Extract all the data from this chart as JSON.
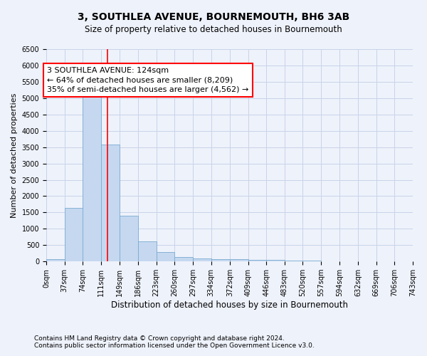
{
  "title": "3, SOUTHLEA AVENUE, BOURNEMOUTH, BH6 3AB",
  "subtitle": "Size of property relative to detached houses in Bournemouth",
  "xlabel": "Distribution of detached houses by size in Bournemouth",
  "ylabel": "Number of detached properties",
  "footnote1": "Contains HM Land Registry data © Crown copyright and database right 2024.",
  "footnote2": "Contains public sector information licensed under the Open Government Licence v3.0.",
  "annotation_line1": "3 SOUTHLEA AVENUE: 124sqm",
  "annotation_line2": "← 64% of detached houses are smaller (8,209)",
  "annotation_line3": "35% of semi-detached houses are larger (4,562) →",
  "bar_color": "#c5d8f0",
  "bar_edge_color": "#7aaad0",
  "red_line_x": 124,
  "ylim": [
    0,
    6500
  ],
  "bin_edges": [
    0,
    37,
    74,
    111,
    149,
    186,
    223,
    260,
    297,
    334,
    372,
    409,
    446,
    483,
    520,
    557,
    594,
    632,
    669,
    706,
    743
  ],
  "bar_heights": [
    75,
    1650,
    5060,
    3590,
    1410,
    620,
    290,
    140,
    100,
    75,
    60,
    55,
    50,
    30,
    20,
    15,
    10,
    8,
    5,
    5
  ],
  "grid_color": "#c8d4e8",
  "background_color": "#eef2fb",
  "title_fontsize": 10,
  "subtitle_fontsize": 8.5,
  "tick_fontsize": 7,
  "ylabel_fontsize": 8,
  "xlabel_fontsize": 8.5,
  "annotation_fontsize": 8,
  "footnote_fontsize": 6.5
}
